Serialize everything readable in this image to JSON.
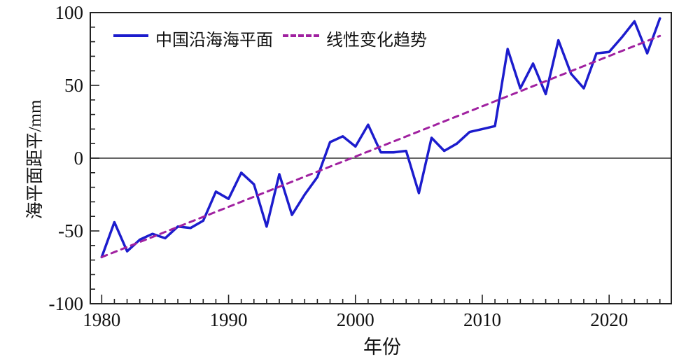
{
  "figure": {
    "ylabel": "海平面距平/mm",
    "xlabel": "年份",
    "legend": {
      "series_label": "中国沿海海平面",
      "trend_label": "线性变化趋势"
    },
    "colors": {
      "series": "#1c1ccd",
      "trend": "#a021a0",
      "axis": "#222222",
      "zero_line": "#333333",
      "background": "#ffffff"
    }
  },
  "chart_data": {
    "type": "line",
    "title": "",
    "xlabel": "年份",
    "ylabel": "海平面距平/mm",
    "xlim": [
      1979.1,
      2024.9
    ],
    "ylim": [
      -100,
      100
    ],
    "xticks": [
      1980,
      1990,
      2000,
      2010,
      2020
    ],
    "yticks": [
      100,
      50,
      0,
      -50,
      -100
    ],
    "x_minor_step": 1,
    "y_minor_step": 10,
    "grid": false,
    "zero_line": true,
    "legend_position": "upper left",
    "x": [
      1980,
      1981,
      1982,
      1983,
      1984,
      1985,
      1986,
      1987,
      1988,
      1989,
      1990,
      1991,
      1992,
      1993,
      1994,
      1995,
      1996,
      1997,
      1998,
      1999,
      2000,
      2001,
      2002,
      2003,
      2004,
      2005,
      2006,
      2007,
      2008,
      2009,
      2010,
      2011,
      2012,
      2013,
      2014,
      2015,
      2016,
      2017,
      2018,
      2019,
      2020,
      2021,
      2022,
      2023,
      2024
    ],
    "series": [
      {
        "name": "中国沿海海平面",
        "color": "#1c1ccd",
        "style": "solid",
        "width": 3.5,
        "values": [
          -68,
          -44,
          -64,
          -56,
          -52,
          -55,
          -47,
          -48,
          -43,
          -23,
          -28,
          -10,
          -18,
          -47,
          -11,
          -39,
          -25,
          -13,
          11,
          15,
          8,
          23,
          4,
          4,
          5,
          -24,
          14,
          5,
          10,
          18,
          20,
          22,
          75,
          48,
          65,
          44,
          81,
          58,
          48,
          72,
          73,
          83,
          94,
          72,
          96
        ]
      },
      {
        "name": "线性变化趋势",
        "color": "#a021a0",
        "style": "dashed",
        "width": 3,
        "x": [
          1980,
          2024
        ],
        "values": [
          -68,
          84
        ]
      }
    ]
  }
}
